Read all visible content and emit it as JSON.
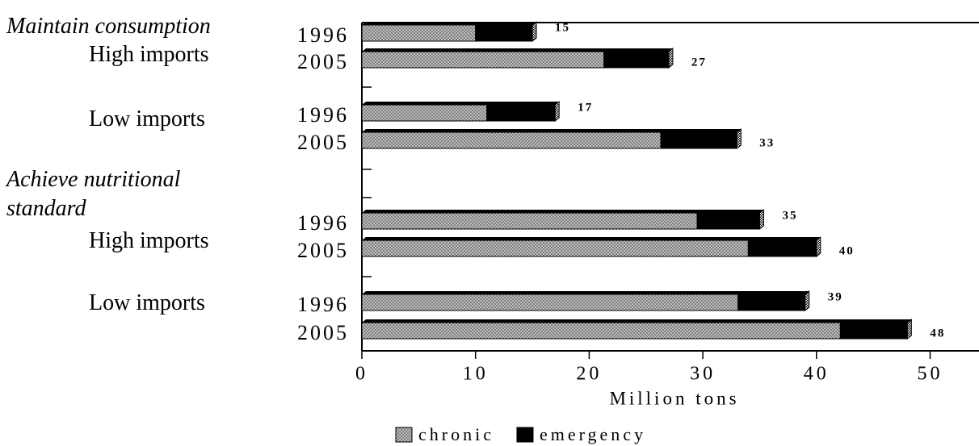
{
  "chart_data": {
    "type": "stacked-bar-horizontal",
    "group_labels": [
      "Maintain consumption",
      "Achieve nutritional standard"
    ],
    "subgroup_labels": [
      "High imports",
      "Low imports",
      "High imports",
      "Low imports"
    ],
    "categories": [
      "1996",
      "2005",
      "1996",
      "2005",
      "1996",
      "2005",
      "1996",
      "2005"
    ],
    "series": [
      {
        "name": "chronic",
        "color": "#bdbdbd",
        "values": [
          10,
          21.3,
          11,
          26.3,
          29.5,
          34,
          33.1,
          42.1
        ]
      },
      {
        "name": "emergency",
        "color": "#000000",
        "values": [
          5,
          5.7,
          6,
          6.7,
          5.5,
          6,
          5.9,
          5.9
        ]
      }
    ],
    "totals": [
      15,
      27,
      17,
      33,
      35,
      40,
      39,
      48
    ],
    "xlabel": "Million tons",
    "xlim": [
      0,
      54.3
    ],
    "xticks": [
      0,
      10,
      20,
      30,
      40,
      50
    ],
    "legend": "bottom"
  }
}
